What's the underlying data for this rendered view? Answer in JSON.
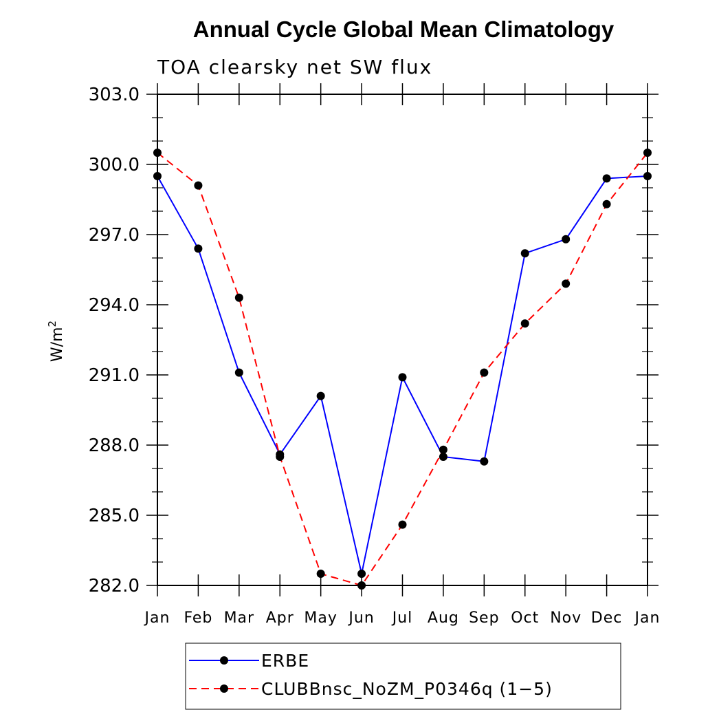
{
  "chart_data": {
    "type": "line",
    "title": "Annual Cycle Global Mean Climatology",
    "subtitle": "TOA clearsky net SW flux",
    "xlabel": "",
    "ylabel": "W/m",
    "ylabel_superscript": "2",
    "categories": [
      "Jan",
      "Feb",
      "Mar",
      "Apr",
      "May",
      "Jun",
      "Jul",
      "Aug",
      "Sep",
      "Oct",
      "Nov",
      "Dec",
      "Jan"
    ],
    "ylim": [
      282.0,
      303.0
    ],
    "yticks": [
      "282.0",
      "285.0",
      "288.0",
      "291.0",
      "294.0",
      "297.0",
      "300.0",
      "303.0"
    ],
    "series": [
      {
        "name": "ERBE",
        "color": "#0000ff",
        "dash": "solid",
        "values": [
          299.5,
          296.4,
          291.1,
          287.6,
          290.1,
          282.5,
          290.9,
          287.5,
          287.3,
          296.2,
          296.8,
          299.4,
          299.5
        ]
      },
      {
        "name": "CLUBBnsc_NoZM_P0346q (1−5)",
        "color": "#ff0000",
        "dash": "dashed",
        "values": [
          300.5,
          299.1,
          294.3,
          287.5,
          282.5,
          282.0,
          284.6,
          287.8,
          291.1,
          293.2,
          294.9,
          298.3,
          300.5
        ]
      }
    ],
    "legend_position": "bottom-center"
  }
}
